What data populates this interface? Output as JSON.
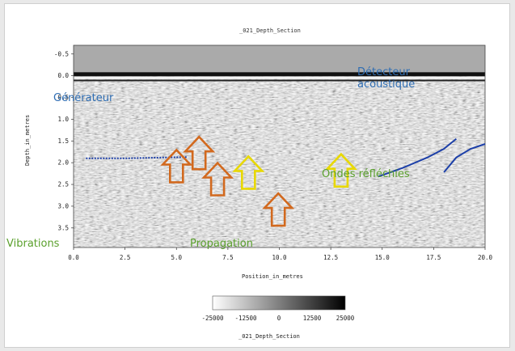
{
  "chart_data": {
    "type": "heatmap",
    "title": "_021_Depth_Section",
    "xlabel": "Position_in_metres",
    "ylabel": "Depth_in_metres",
    "xlim": [
      0.0,
      20.0
    ],
    "ylim": [
      -0.7,
      3.95
    ],
    "x_ticks": [
      "0.0",
      "2.5",
      "5.0",
      "7.5",
      "10.0",
      "12.5",
      "15.0",
      "17.5",
      "20.0"
    ],
    "y_ticks": [
      "-0.5",
      "0.0",
      "0.5",
      "1.0",
      "1.5",
      "2.0",
      "2.5",
      "3.0",
      "3.5"
    ],
    "colorbar": {
      "ticks": [
        "-25000",
        "-12500",
        "0",
        "12500",
        "25000"
      ],
      "label": "_021_Depth_Section",
      "min": -25000,
      "max": 25000
    },
    "annotations": {
      "detector": "Détecteur acoustique",
      "generator": "Générateur",
      "vibrations": "Vibrations",
      "propagation": "Propagation",
      "ondes": "Ondes réfléchies"
    },
    "arrows": [
      {
        "x": 5.0,
        "y": 2.45,
        "color": "#d2691e"
      },
      {
        "x": 6.1,
        "y": 2.15,
        "color": "#d2691e"
      },
      {
        "x": 7.0,
        "y": 2.75,
        "color": "#d2691e"
      },
      {
        "x": 8.5,
        "y": 2.6,
        "color": "#e8d800"
      },
      {
        "x": 9.95,
        "y": 3.45,
        "color": "#d2691e"
      },
      {
        "x": 13.0,
        "y": 2.55,
        "color": "#e8d800"
      }
    ],
    "reflector_line": [
      [
        0.6,
        1.9
      ],
      [
        2.5,
        1.9
      ],
      [
        4.5,
        1.88
      ],
      [
        5.5,
        1.87
      ]
    ],
    "reflector_right": [
      [
        14.8,
        2.32
      ],
      [
        16.0,
        2.12
      ],
      [
        17.2,
        1.88
      ],
      [
        18.0,
        1.68
      ],
      [
        18.6,
        1.45
      ]
    ],
    "reflector_right2": [
      [
        18.0,
        2.22
      ],
      [
        18.6,
        1.88
      ],
      [
        19.3,
        1.68
      ],
      [
        20.0,
        1.57
      ]
    ]
  },
  "colors": {
    "arrow_orange": "#d2691e",
    "arrow_yellow": "#e8d800",
    "reflector_blue": "#1c3fa8",
    "annotation_blue": "#2e6db3",
    "annotation_green": "#5aa02c"
  }
}
